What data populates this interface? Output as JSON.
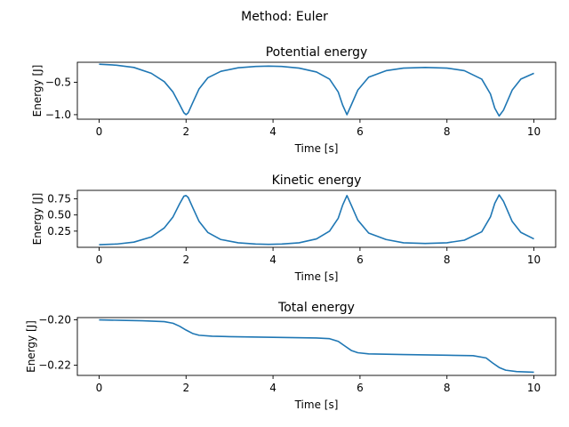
{
  "suptitle": "Method: Euler",
  "line_color": "#1f77b4",
  "chart_data": [
    {
      "type": "line",
      "title": "Potential energy",
      "xlabel": "Time [s]",
      "ylabel": "Energy [J]",
      "xlim": [
        -0.5,
        10.5
      ],
      "ylim": [
        -1.07,
        -0.19
      ],
      "xticks": [
        0,
        2,
        4,
        6,
        8,
        10
      ],
      "yticks": [
        -0.5,
        -1.0
      ],
      "ytick_labels": [
        "−0.5",
        "−1.0"
      ],
      "grid": false,
      "series": [
        {
          "x": [
            0,
            0.4,
            0.8,
            1.2,
            1.5,
            1.7,
            1.85,
            1.95,
            2.0,
            2.05,
            2.15,
            2.3,
            2.5,
            2.8,
            3.2,
            3.6,
            3.9,
            4.2,
            4.6,
            5.0,
            5.3,
            5.5,
            5.6,
            5.7,
            5.8,
            5.95,
            6.2,
            6.6,
            7.0,
            7.5,
            8.0,
            8.4,
            8.8,
            9.0,
            9.1,
            9.2,
            9.3,
            9.5,
            9.7,
            10.0
          ],
          "y": [
            -0.22,
            -0.235,
            -0.27,
            -0.36,
            -0.49,
            -0.65,
            -0.84,
            -0.97,
            -1.0,
            -0.97,
            -0.82,
            -0.6,
            -0.43,
            -0.33,
            -0.275,
            -0.255,
            -0.25,
            -0.255,
            -0.28,
            -0.34,
            -0.45,
            -0.65,
            -0.85,
            -1.0,
            -0.85,
            -0.62,
            -0.42,
            -0.32,
            -0.28,
            -0.27,
            -0.28,
            -0.32,
            -0.45,
            -0.68,
            -0.9,
            -1.02,
            -0.93,
            -0.62,
            -0.45,
            -0.36
          ]
        }
      ]
    },
    {
      "type": "line",
      "title": "Kinetic energy",
      "xlabel": "Time [s]",
      "ylabel": "Energy [J]",
      "xlim": [
        -0.5,
        10.5
      ],
      "ylim": [
        0.0,
        0.88
      ],
      "xticks": [
        0,
        2,
        4,
        6,
        8,
        10
      ],
      "yticks": [
        0.25,
        0.5,
        0.75
      ],
      "ytick_labels": [
        "0.25",
        "0.50",
        "0.75"
      ],
      "grid": false,
      "series": [
        {
          "x": [
            0,
            0.4,
            0.8,
            1.2,
            1.5,
            1.7,
            1.85,
            1.95,
            2.0,
            2.05,
            2.15,
            2.3,
            2.5,
            2.8,
            3.2,
            3.6,
            3.9,
            4.2,
            4.6,
            5.0,
            5.3,
            5.5,
            5.6,
            5.7,
            5.8,
            5.95,
            6.2,
            6.6,
            7.0,
            7.5,
            8.0,
            8.4,
            8.8,
            9.0,
            9.1,
            9.2,
            9.3,
            9.5,
            9.7,
            10.0
          ],
          "y": [
            0.04,
            0.05,
            0.08,
            0.16,
            0.3,
            0.47,
            0.67,
            0.79,
            0.8,
            0.77,
            0.62,
            0.4,
            0.23,
            0.12,
            0.07,
            0.05,
            0.045,
            0.05,
            0.07,
            0.13,
            0.25,
            0.45,
            0.65,
            0.8,
            0.65,
            0.42,
            0.22,
            0.12,
            0.07,
            0.06,
            0.07,
            0.11,
            0.24,
            0.47,
            0.68,
            0.81,
            0.71,
            0.4,
            0.23,
            0.13
          ]
        }
      ]
    },
    {
      "type": "line",
      "title": "Total energy",
      "xlabel": "Time [s]",
      "ylabel": "Energy [J]",
      "xlim": [
        -0.5,
        10.5
      ],
      "ylim": [
        -0.2245,
        -0.199
      ],
      "xticks": [
        0,
        2,
        4,
        6,
        8,
        10
      ],
      "yticks": [
        -0.2,
        -0.22
      ],
      "ytick_labels": [
        "−0.20",
        "−0.22"
      ],
      "grid": false,
      "series": [
        {
          "x": [
            0,
            0.5,
            1.0,
            1.5,
            1.7,
            1.85,
            2.0,
            2.15,
            2.3,
            2.6,
            3.0,
            4.0,
            5.0,
            5.3,
            5.5,
            5.65,
            5.8,
            5.95,
            6.2,
            7.0,
            8.0,
            8.6,
            8.9,
            9.05,
            9.2,
            9.35,
            9.6,
            10.0
          ],
          "y": [
            -0.2,
            -0.2002,
            -0.2004,
            -0.2008,
            -0.2015,
            -0.2028,
            -0.2045,
            -0.206,
            -0.2068,
            -0.2072,
            -0.2074,
            -0.2077,
            -0.208,
            -0.2083,
            -0.2095,
            -0.2115,
            -0.2135,
            -0.2145,
            -0.215,
            -0.2153,
            -0.2156,
            -0.2158,
            -0.2168,
            -0.219,
            -0.221,
            -0.2222,
            -0.2228,
            -0.2231
          ]
        }
      ]
    }
  ]
}
